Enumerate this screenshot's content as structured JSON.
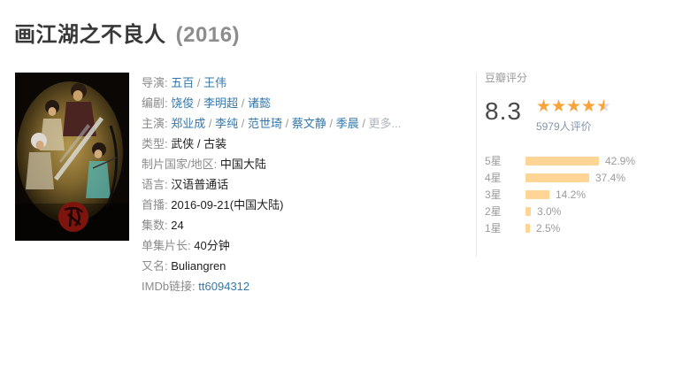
{
  "header": {
    "title": "画江湖之不良人",
    "year": "(2016)"
  },
  "sep": " / ",
  "info": {
    "director_label": "导演:",
    "directors": [
      "五百",
      "王伟"
    ],
    "writer_label": "编剧:",
    "writers": [
      "饶俊",
      "李明超",
      "诸懿"
    ],
    "cast_label": "主演:",
    "cast": [
      "郑业成",
      "李纯",
      "范世琦",
      "蔡文静",
      "季晨"
    ],
    "cast_more": "更多...",
    "genre_label": "类型:",
    "genres": [
      "武侠",
      "古装"
    ],
    "region_label": "制片国家/地区:",
    "region": "中国大陆",
    "language_label": "语言:",
    "language": "汉语普通话",
    "premiere_label": "首播:",
    "premiere": "2016-09-21(中国大陆)",
    "episodes_label": "集数:",
    "episodes": "24",
    "runtime_label": "单集片长:",
    "runtime": "40分钟",
    "aka_label": "又名:",
    "aka": "Buliangren",
    "imdb_label": "IMDb链接:",
    "imdb": "tt6094312"
  },
  "rating": {
    "section_title": "豆瓣评分",
    "score": "8.3",
    "stars_value": 4.5,
    "star_glyphs": "★★★★★",
    "votes": "5979人评价",
    "bars": [
      {
        "label": "5星",
        "pct": "42.9%",
        "value": 42.9
      },
      {
        "label": "4星",
        "pct": "37.4%",
        "value": 37.4
      },
      {
        "label": "3星",
        "pct": "14.2%",
        "value": 14.2
      },
      {
        "label": "2星",
        "pct": "3.0%",
        "value": 3.0
      },
      {
        "label": "1星",
        "pct": "2.5%",
        "value": 2.5
      }
    ]
  },
  "colors": {
    "link_blue": "#3377aa",
    "star_orange": "#f9a338",
    "bar_orange": "#ffd596",
    "label_gray": "#8b8b8b"
  }
}
